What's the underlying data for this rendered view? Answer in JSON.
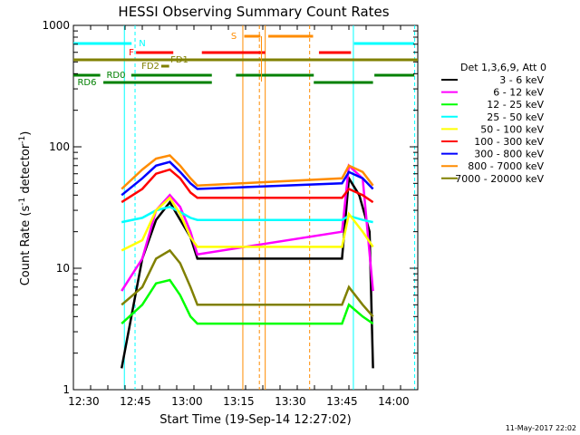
{
  "chart_data": {
    "type": "line",
    "title": "HESSI Observing Summary Count Rates",
    "xlabel": "Start Time (19-Sep-14 12:27:02)",
    "ylabel_main": "Count Rate (s",
    "ylabel_sup1": "-1",
    "ylabel_mid": " detector",
    "ylabel_sup2": "-1",
    "ylabel_end": ")",
    "xlim_min": [
      0,
      100
    ],
    "ylim": [
      1,
      1000
    ],
    "yscale": "log",
    "x_ticks": [
      "12:30",
      "12:45",
      "13:00",
      "13:15",
      "13:30",
      "13:45",
      "14:00"
    ],
    "x_tick_values": [
      3,
      18,
      33,
      48,
      63,
      78,
      93
    ],
    "y_ticks": [
      "1",
      "10",
      "100",
      "1000"
    ],
    "y_tick_values": [
      1,
      10,
      100,
      1000
    ],
    "legend_header": "Det 1,3,6,9, Att 0",
    "legend_position": "right",
    "series": [
      {
        "name": "3 - 6 keV",
        "color": "#000000",
        "x": [
          14,
          20,
          24,
          28,
          30,
          34,
          36,
          78,
          80,
          83,
          86,
          87
        ],
        "y": [
          1.5,
          12,
          25,
          35,
          28,
          18,
          12,
          12,
          55,
          40,
          20,
          1.5
        ]
      },
      {
        "name": "6 - 12 keV",
        "color": "#ff00ff",
        "x": [
          14,
          20,
          24,
          28,
          31,
          34,
          36,
          78,
          80,
          84,
          87
        ],
        "y": [
          6.5,
          12,
          30,
          40,
          32,
          20,
          13,
          20,
          70,
          55,
          6.5
        ]
      },
      {
        "name": "12 - 25 keV",
        "color": "#00ff00",
        "x": [
          14,
          20,
          24,
          28,
          31,
          34,
          36,
          78,
          80,
          84,
          87
        ],
        "y": [
          3.5,
          5,
          7.5,
          8,
          6,
          4,
          3.5,
          3.5,
          5,
          4,
          3.5
        ]
      },
      {
        "name": "25 - 50 keV",
        "color": "#00ffff",
        "x": [
          14,
          20,
          24,
          28,
          31,
          34,
          36,
          78,
          80,
          84,
          87
        ],
        "y": [
          24,
          26,
          30,
          32,
          29,
          26,
          25,
          25,
          27,
          25,
          24
        ]
      },
      {
        "name": "50 - 100 keV",
        "color": "#ffff00",
        "x": [
          14,
          20,
          24,
          28,
          31,
          34,
          36,
          78,
          80,
          84,
          87
        ],
        "y": [
          14,
          17,
          30,
          38,
          28,
          18,
          15,
          15,
          28,
          20,
          15
        ]
      },
      {
        "name": "100 - 300 keV",
        "color": "#ff0000",
        "x": [
          14,
          20,
          24,
          28,
          31,
          34,
          36,
          78,
          80,
          84,
          87
        ],
        "y": [
          35,
          45,
          60,
          65,
          55,
          42,
          38,
          38,
          45,
          40,
          35
        ]
      },
      {
        "name": "300 - 800 keV",
        "color": "#0000ff",
        "x": [
          14,
          20,
          24,
          28,
          31,
          34,
          36,
          78,
          80,
          84,
          87
        ],
        "y": [
          40,
          55,
          70,
          75,
          62,
          50,
          45,
          50,
          62,
          55,
          45
        ]
      },
      {
        "name": "800 - 7000 keV",
        "color": "#ff8c00",
        "x": [
          14,
          20,
          24,
          28,
          31,
          34,
          36,
          78,
          80,
          84,
          87
        ],
        "y": [
          45,
          65,
          80,
          85,
          70,
          55,
          48,
          55,
          70,
          62,
          48
        ]
      },
      {
        "name": "7000 - 20000 keV",
        "color": "#808000",
        "x": [
          14,
          20,
          24,
          28,
          31,
          34,
          36,
          78,
          80,
          84,
          87
        ],
        "y": [
          5,
          7,
          12,
          14,
          11,
          7,
          5,
          5,
          7,
          5,
          4
        ]
      }
    ],
    "flag_labels": [
      "N",
      "F",
      "FD1",
      "FD2",
      "RD0",
      "RD6",
      "S"
    ]
  },
  "footer_date": "11-May-2017 22:02"
}
